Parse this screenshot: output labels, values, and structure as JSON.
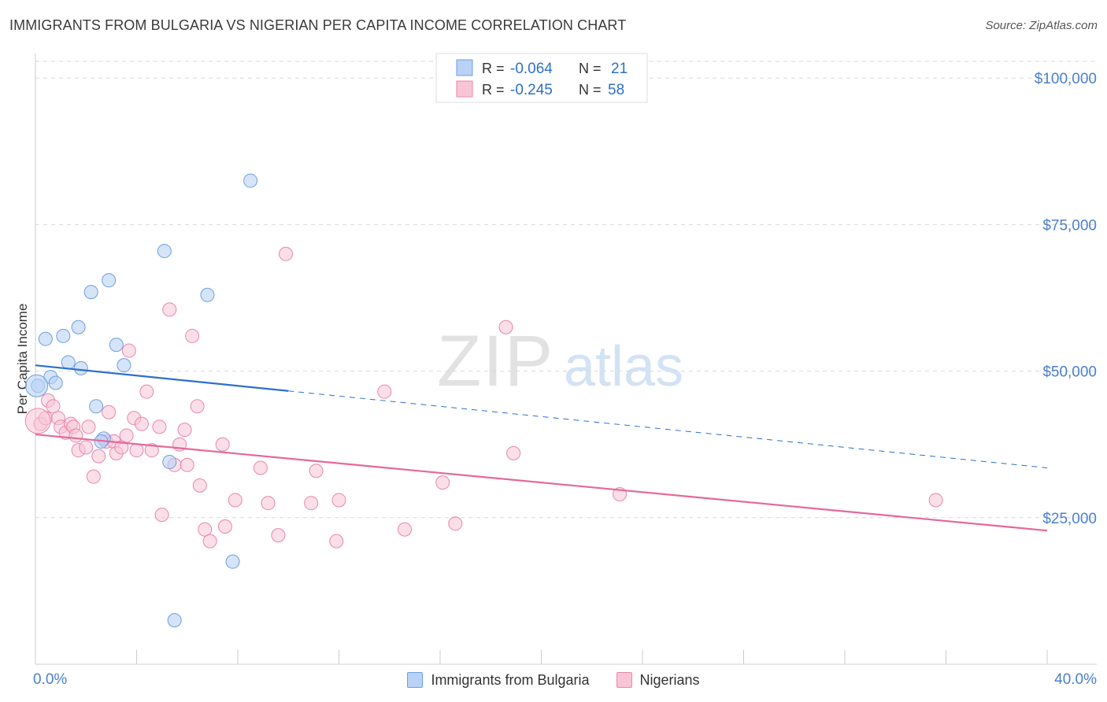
{
  "title": "IMMIGRANTS FROM BULGARIA VS NIGERIAN PER CAPITA INCOME CORRELATION CHART",
  "source": "Source: ZipAtlas.com",
  "watermark": {
    "zip": "ZIP",
    "atlas": "atlas"
  },
  "colors": {
    "blue": "#6f9fe0",
    "blue_fill": "#b9d2f5",
    "blue_line": "#2d6fce",
    "pink": "#ea86a8",
    "pink_fill": "#f7c5d5",
    "pink_line": "#e5689a",
    "axis_label": "#4a7fcf",
    "grid": "#d9d9d9"
  },
  "legend_top": {
    "row1": {
      "r_label": "R =",
      "r_value": "-0.064",
      "n_label": "N =",
      "n_value": "21"
    },
    "row2": {
      "r_label": "R =",
      "r_value": "-0.245",
      "n_label": "N =",
      "n_value": "58"
    }
  },
  "legend_bottom": [
    "Immigrants from Bulgaria",
    "Nigerians"
  ],
  "chart_data": {
    "type": "scatter",
    "title": "IMMIGRANTS FROM BULGARIA VS NIGERIAN PER CAPITA INCOME CORRELATION CHART",
    "xlabel": "",
    "ylabel": "Per Capita Income",
    "xlim": [
      0,
      40
    ],
    "ylim": [
      0,
      105000
    ],
    "x_tick_labels": [
      "0.0%",
      "40.0%"
    ],
    "y_ticks": [
      25000,
      50000,
      75000,
      100000
    ],
    "y_tick_labels": [
      "$25,000",
      "$50,000",
      "$75,000",
      "$100,000"
    ],
    "grid": true,
    "legend_position": "top-center",
    "series": [
      {
        "name": "Immigrants from Bulgaria",
        "r": -0.064,
        "n": 21,
        "trend": {
          "x0": 0,
          "y0": 51000,
          "x1": 40,
          "y1": 33500,
          "solid_until": 10
        },
        "points": [
          [
            0.1,
            47500
          ],
          [
            0.4,
            55500
          ],
          [
            0.6,
            49000
          ],
          [
            0.8,
            48000
          ],
          [
            1.1,
            56000
          ],
          [
            1.3,
            51500
          ],
          [
            1.7,
            57500
          ],
          [
            1.8,
            50500
          ],
          [
            2.2,
            63500
          ],
          [
            2.4,
            44000
          ],
          [
            2.7,
            38500
          ],
          [
            2.9,
            65500
          ],
          [
            3.2,
            54500
          ],
          [
            3.5,
            51000
          ],
          [
            5.1,
            70500
          ],
          [
            5.3,
            34500
          ],
          [
            5.5,
            7500
          ],
          [
            6.8,
            63000
          ],
          [
            7.8,
            17500
          ],
          [
            8.5,
            82500
          ],
          [
            2.6,
            38000
          ]
        ]
      },
      {
        "name": "Nigerians",
        "r": -0.245,
        "n": 58,
        "trend": {
          "x0": 0,
          "y0": 39200,
          "x1": 40,
          "y1": 22800
        },
        "points": [
          [
            0.2,
            41000
          ],
          [
            0.4,
            42000
          ],
          [
            0.5,
            45000
          ],
          [
            0.7,
            44000
          ],
          [
            0.9,
            42000
          ],
          [
            1.0,
            40500
          ],
          [
            1.2,
            39500
          ],
          [
            1.4,
            41000
          ],
          [
            1.5,
            40500
          ],
          [
            1.6,
            39000
          ],
          [
            1.7,
            36500
          ],
          [
            2.0,
            37000
          ],
          [
            2.1,
            40500
          ],
          [
            2.3,
            32000
          ],
          [
            2.5,
            35500
          ],
          [
            2.8,
            38000
          ],
          [
            2.9,
            43000
          ],
          [
            3.1,
            38000
          ],
          [
            3.2,
            36000
          ],
          [
            3.4,
            37000
          ],
          [
            3.6,
            39000
          ],
          [
            3.7,
            53500
          ],
          [
            3.9,
            42000
          ],
          [
            4.0,
            36500
          ],
          [
            4.2,
            41000
          ],
          [
            4.4,
            46500
          ],
          [
            4.6,
            36500
          ],
          [
            4.9,
            40500
          ],
          [
            5.0,
            25500
          ],
          [
            5.3,
            60500
          ],
          [
            5.5,
            34000
          ],
          [
            5.7,
            37500
          ],
          [
            5.9,
            40000
          ],
          [
            6.0,
            34000
          ],
          [
            6.2,
            56000
          ],
          [
            6.4,
            44000
          ],
          [
            6.5,
            30500
          ],
          [
            6.7,
            23000
          ],
          [
            6.9,
            21000
          ],
          [
            7.4,
            37500
          ],
          [
            7.5,
            23500
          ],
          [
            7.9,
            28000
          ],
          [
            8.9,
            33500
          ],
          [
            9.2,
            27500
          ],
          [
            9.6,
            22000
          ],
          [
            9.9,
            70000
          ],
          [
            10.9,
            27500
          ],
          [
            11.1,
            33000
          ],
          [
            11.9,
            21000
          ],
          [
            12.0,
            28000
          ],
          [
            13.8,
            46500
          ],
          [
            14.6,
            23000
          ],
          [
            16.1,
            31000
          ],
          [
            16.6,
            24000
          ],
          [
            18.6,
            57500
          ],
          [
            18.9,
            36000
          ],
          [
            23.1,
            29000
          ],
          [
            35.6,
            28000
          ]
        ]
      }
    ]
  }
}
